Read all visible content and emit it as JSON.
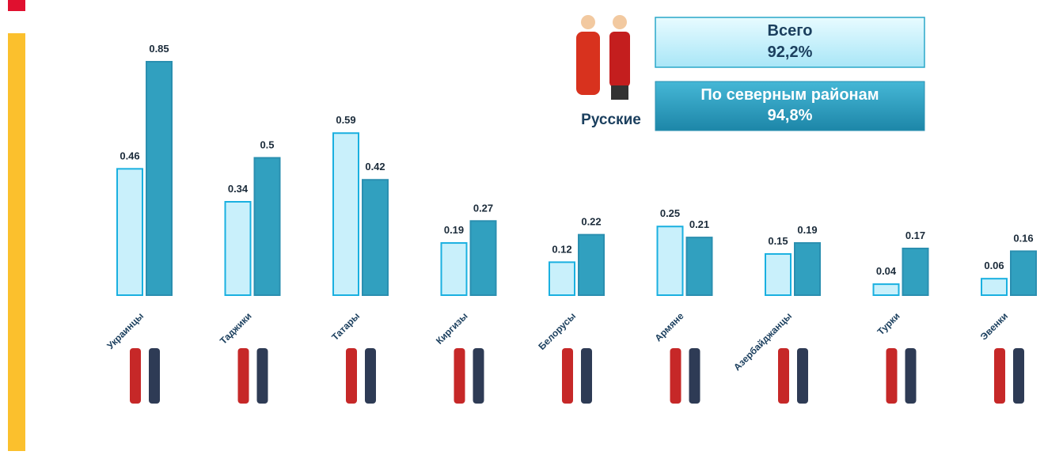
{
  "chart_data": {
    "type": "bar",
    "categories": [
      "Украинцы",
      "Таджики",
      "Татары",
      "Киргизы",
      "Белорусы",
      "Армяне",
      "Азербайджанцы",
      "Турки",
      "Эвенки"
    ],
    "series": [
      {
        "name": "Всего",
        "color": "#c9f0fb",
        "values": [
          0.46,
          0.34,
          0.59,
          0.19,
          0.12,
          0.25,
          0.15,
          0.04,
          0.06
        ]
      },
      {
        "name": "По северным районам",
        "color": "#31a0bf",
        "values": [
          0.85,
          0.5,
          0.42,
          0.27,
          0.22,
          0.21,
          0.19,
          0.17,
          0.16
        ]
      }
    ],
    "highlight": {
      "label": "Русские",
      "values": [
        92.2,
        94.8
      ],
      "value_labels": [
        "92,2%",
        "94,8%"
      ]
    }
  }
}
